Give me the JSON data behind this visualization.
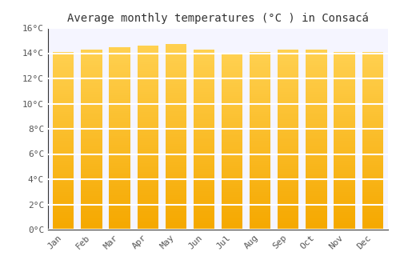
{
  "title": "Average monthly temperatures (°C ) in Consacá",
  "months": [
    "Jan",
    "Feb",
    "Mar",
    "Apr",
    "May",
    "Jun",
    "Jul",
    "Aug",
    "Sep",
    "Oct",
    "Nov",
    "Dec"
  ],
  "temperatures": [
    14.1,
    14.3,
    14.5,
    14.6,
    14.7,
    14.3,
    13.9,
    14.1,
    14.3,
    14.3,
    14.1,
    14.1
  ],
  "bar_color_bottom": "#F5A800",
  "bar_color_top": "#FFCC40",
  "ylim": [
    0,
    16
  ],
  "yticks": [
    0,
    2,
    4,
    6,
    8,
    10,
    12,
    14,
    16
  ],
  "ytick_labels": [
    "0°C",
    "2°C",
    "4°C",
    "6°C",
    "8°C",
    "10°C",
    "12°C",
    "14°C",
    "16°C"
  ],
  "bg_color": "#FFFFFF",
  "plot_bg_color": "#F5F5FF",
  "grid_color": "#FFFFFF",
  "title_fontsize": 10,
  "tick_fontsize": 8,
  "bar_width": 0.75
}
